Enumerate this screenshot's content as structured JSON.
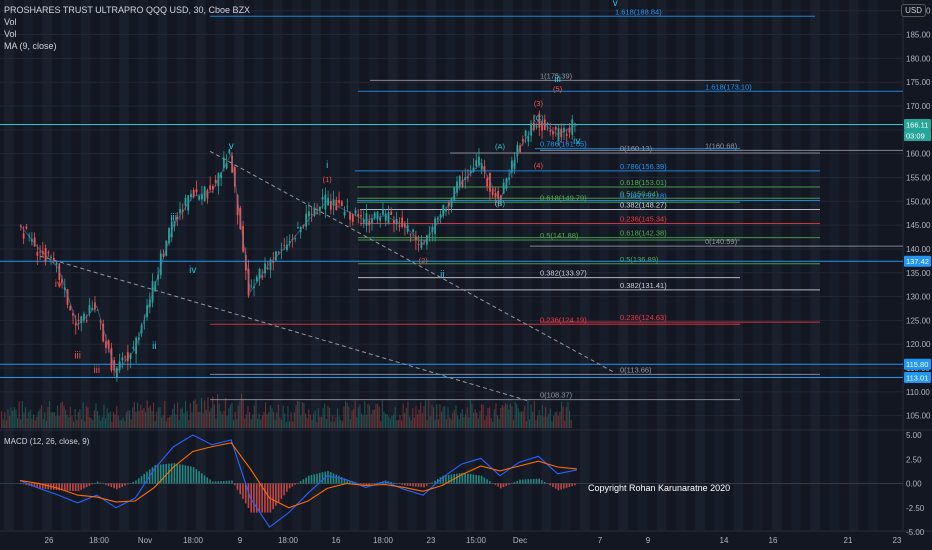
{
  "header": {
    "symbol": "PROSHARES TRUST ULTRAPRO QQQ USD, 30, Cboe BZX",
    "indicators": [
      "Vol",
      "Vol",
      "MA (9, close)"
    ],
    "currency_button": "USD"
  },
  "macd_label": "MACD (12, 26, close, 9)",
  "copyright": "Copyright Rohan Karunaratne 2020",
  "colors": {
    "background": "#131722",
    "fib_blue": "#2196f3",
    "fib_red": "#f23645",
    "fib_green": "#4caf50",
    "fib_gray": "#9598a1",
    "wave_cyan": "#26c6da",
    "wave_red": "#ef5350",
    "candle_up": "#26a69a",
    "candle_down": "#ef5350",
    "macd_line": "#2962ff",
    "signal_line": "#ff6d00"
  },
  "chart_data": [
    {
      "type": "candlestick",
      "title": "PROSHARES TRUST ULTRAPRO QQQ USD, 30, Cboe BZX",
      "y_axis": {
        "ylim": [
          100,
          195
        ],
        "ticks": [
          105,
          110,
          115,
          120,
          125,
          130,
          135,
          140,
          145,
          150,
          155,
          160,
          165,
          170,
          175,
          180,
          185,
          190
        ]
      },
      "x_axis": {
        "ticks": [
          "26",
          "18:00",
          "Nov",
          "18:00",
          "9",
          "18:00",
          "16",
          "18:00",
          "23",
          "15:00",
          "Dec",
          "7",
          "9",
          "14",
          "16",
          "21",
          "23"
        ]
      },
      "price_tags": [
        {
          "value": "166.11",
          "style": "current"
        },
        {
          "value": "03:09",
          "style": "countdown"
        },
        {
          "value": "137.42",
          "style": "line"
        },
        {
          "value": "115.80",
          "style": "line"
        },
        {
          "value": "113.01",
          "style": "line"
        }
      ],
      "close_path": [
        {
          "t": "Oct 23",
          "v": 145
        },
        {
          "t": "Oct 26",
          "v": 140
        },
        {
          "t": "Oct 27",
          "v": 136
        },
        {
          "t": "Oct 28",
          "v": 124
        },
        {
          "t": "Oct 29",
          "v": 128
        },
        {
          "t": "Oct 30",
          "v": 114
        },
        {
          "t": "Nov 2",
          "v": 119
        },
        {
          "t": "Nov 3",
          "v": 132
        },
        {
          "t": "Nov 4",
          "v": 145
        },
        {
          "t": "Nov 5",
          "v": 151
        },
        {
          "t": "Nov 6",
          "v": 152
        },
        {
          "t": "Nov 9",
          "v": 160
        },
        {
          "t": "Nov 10",
          "v": 131
        },
        {
          "t": "Nov 11",
          "v": 137
        },
        {
          "t": "Nov 12",
          "v": 141
        },
        {
          "t": "Nov 13",
          "v": 146
        },
        {
          "t": "Nov 16",
          "v": 150
        },
        {
          "t": "Nov 17",
          "v": 148
        },
        {
          "t": "Nov 18",
          "v": 146
        },
        {
          "t": "Nov 19",
          "v": 147
        },
        {
          "t": "Nov 20",
          "v": 145
        },
        {
          "t": "Nov 23",
          "v": 141
        },
        {
          "t": "Nov 24",
          "v": 147
        },
        {
          "t": "Nov 25",
          "v": 154
        },
        {
          "t": "Nov 27",
          "v": 158
        },
        {
          "t": "Nov 30",
          "v": 150
        },
        {
          "t": "Dec 1",
          "v": 161
        },
        {
          "t": "Dec 2",
          "v": 167
        },
        {
          "t": "Dec 3",
          "v": 164
        },
        {
          "t": "Dec 4",
          "v": 166
        }
      ],
      "fib_levels": [
        {
          "label": "1.618(188.84)",
          "value": 188.84,
          "color": "blue"
        },
        {
          "label": "1(175.39)",
          "value": 175.39,
          "color": "gray"
        },
        {
          "label": "1.618(173.10)",
          "value": 173.1,
          "color": "blue"
        },
        {
          "label": "1(160.68)",
          "value": 160.68,
          "color": "gray"
        },
        {
          "label": "0.786(161.05)",
          "value": 161.05,
          "color": "blue"
        },
        {
          "label": "0(160.13)",
          "value": 160.13,
          "color": "gray"
        },
        {
          "label": "0.786(156.39)",
          "value": 156.39,
          "color": "blue"
        },
        {
          "label": "0.618(153.01)",
          "value": 153.01,
          "color": "green"
        },
        {
          "label": "0.5(150.64)",
          "value": 150.64,
          "color": "green"
        },
        {
          "label": "0.786(150.18)",
          "value": 150.18,
          "color": "blue"
        },
        {
          "label": "0.618(149.79)",
          "value": 149.79,
          "color": "green"
        },
        {
          "label": "0.382(148.27)",
          "value": 148.27,
          "color": "white"
        },
        {
          "label": "0.236(145.34)",
          "value": 145.34,
          "color": "red"
        },
        {
          "label": "0.618(142.38)",
          "value": 142.38,
          "color": "green"
        },
        {
          "label": "0.5(141.88)",
          "value": 141.88,
          "color": "green"
        },
        {
          "label": "0(140.59)",
          "value": 140.59,
          "color": "gray"
        },
        {
          "label": "0.5(136.89)",
          "value": 136.89,
          "color": "green"
        },
        {
          "label": "0.382(133.97)",
          "value": 133.97,
          "color": "white"
        },
        {
          "label": "0.382(131.41)",
          "value": 131.41,
          "color": "white"
        },
        {
          "label": "0.236(124.19)",
          "value": 124.19,
          "color": "red"
        },
        {
          "label": "0.236(124.63)",
          "value": 124.63,
          "color": "red"
        },
        {
          "label": "0(113.66)",
          "value": 113.66,
          "color": "gray"
        },
        {
          "label": "0(108.37)",
          "value": 108.37,
          "color": "gray"
        }
      ],
      "wave_labels": [
        {
          "text": "v",
          "t": "Dec 8",
          "v": 191,
          "color": "cyan"
        },
        {
          "text": "iii",
          "t": "Dec 3",
          "v": 175,
          "color": "cyan"
        },
        {
          "text": "(5)",
          "t": "Dec 3",
          "v": 173,
          "color": "red"
        },
        {
          "text": "(3)",
          "t": "Dec 2",
          "v": 170,
          "color": "red"
        },
        {
          "text": "(C)",
          "t": "Dec 2",
          "v": 167,
          "color": "cyan"
        },
        {
          "text": "iv",
          "t": "Dec 4",
          "v": 162,
          "color": "cyan"
        },
        {
          "text": "(A)",
          "t": "Nov 30",
          "v": 161,
          "color": "cyan"
        },
        {
          "text": "(4)",
          "t": "Dec 2",
          "v": 157,
          "color": "red"
        },
        {
          "text": "(B)",
          "t": "Nov 30",
          "v": 149,
          "color": "cyan"
        },
        {
          "text": "v",
          "t": "Nov 9",
          "v": 161,
          "color": "cyan"
        },
        {
          "text": "i",
          "t": "Nov 16",
          "v": 157,
          "color": "cyan"
        },
        {
          "text": "(1)",
          "t": "Nov 16",
          "v": 154,
          "color": "red"
        },
        {
          "text": "iii",
          "t": "Nov 4",
          "v": 146,
          "color": "cyan"
        },
        {
          "text": "(2)",
          "t": "Nov 23",
          "v": 137,
          "color": "red"
        },
        {
          "text": "ii",
          "t": "Nov 24",
          "v": 134,
          "color": "cyan"
        },
        {
          "text": "iv",
          "t": "Nov 5",
          "v": 135,
          "color": "cyan"
        },
        {
          "text": "iv",
          "t": "Oct 27",
          "v": 132,
          "color": "red"
        },
        {
          "text": "ii",
          "t": "Nov 3",
          "v": 119,
          "color": "cyan"
        },
        {
          "text": "iii",
          "t": "Oct 28",
          "v": 117,
          "color": "red"
        },
        {
          "text": "iii",
          "t": "Oct 29",
          "v": 114,
          "color": "red"
        }
      ]
    },
    {
      "type": "line",
      "title": "MACD (12, 26, close, 9)",
      "y_axis": {
        "ylim": [
          -5.8,
          6.2
        ],
        "ticks": [
          "5.00",
          "2.50",
          "0.00",
          "-2.50",
          "-5.00"
        ]
      },
      "series": [
        {
          "name": "MACD",
          "values": [
            0.3,
            -0.5,
            -1.2,
            -2.0,
            -1.2,
            -2.5,
            -1.5,
            1.5,
            3.8,
            5.0,
            4.0,
            4.5,
            -1.5,
            -4.5,
            -3.0,
            -1.0,
            0.8,
            0.4,
            -0.4,
            0.2,
            -0.6,
            -1.2,
            0.6,
            2.0,
            2.6,
            0.8,
            2.2,
            2.8,
            1.0,
            1.4
          ]
        },
        {
          "name": "Signal",
          "values": [
            0.3,
            0.0,
            -0.5,
            -1.2,
            -1.4,
            -1.9,
            -1.8,
            -0.4,
            1.7,
            3.3,
            3.8,
            4.2,
            1.5,
            -1.5,
            -2.5,
            -1.8,
            -0.5,
            0.0,
            -0.2,
            -0.1,
            -0.4,
            -0.8,
            -0.2,
            0.9,
            1.8,
            1.3,
            1.8,
            2.3,
            1.7,
            1.5
          ]
        }
      ]
    }
  ]
}
